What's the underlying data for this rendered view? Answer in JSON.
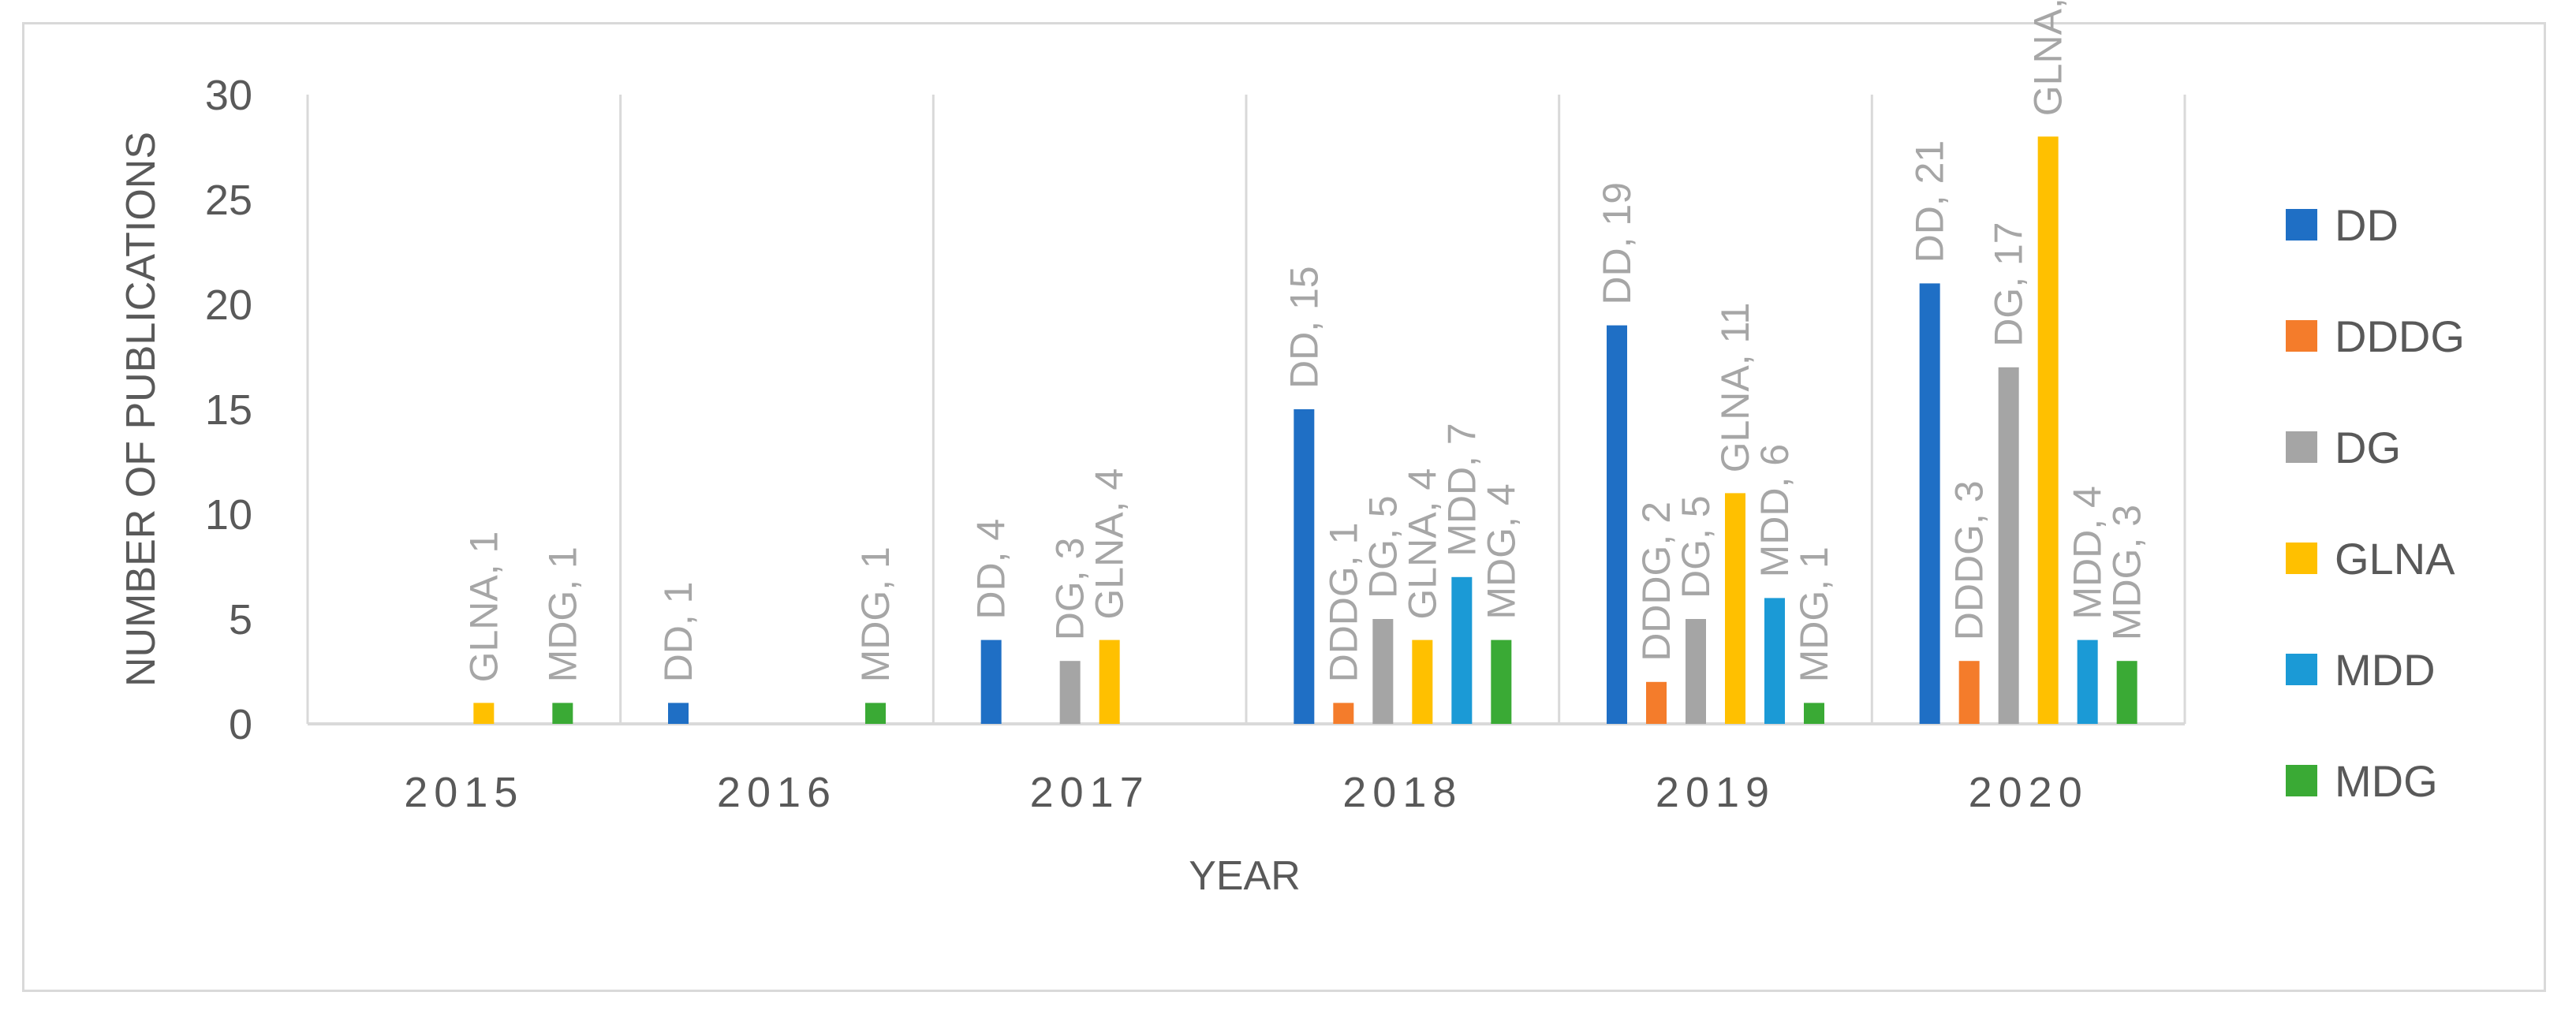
{
  "chart_data": {
    "type": "bar",
    "title": "",
    "xlabel": "YEAR",
    "ylabel": "NUMBER OF PUBLICATIONS",
    "ylim": [
      0,
      30
    ],
    "yticks": [
      0,
      5,
      10,
      15,
      20,
      25,
      30
    ],
    "categories": [
      "2015",
      "2016",
      "2017",
      "2018",
      "2019",
      "2020"
    ],
    "legend_position": "right",
    "series": [
      {
        "name": "DD",
        "color": "#1f6fc5",
        "values": [
          0,
          1,
          4,
          15,
          19,
          21
        ]
      },
      {
        "name": "DDDG",
        "color": "#f47c2b",
        "values": [
          0,
          0,
          0,
          1,
          2,
          3
        ]
      },
      {
        "name": "DG",
        "color": "#a5a5a5",
        "values": [
          0,
          0,
          3,
          5,
          5,
          17
        ]
      },
      {
        "name": "GLNA",
        "color": "#ffc000",
        "values": [
          1,
          0,
          4,
          4,
          11,
          28
        ]
      },
      {
        "name": "MDD",
        "color": "#1b9ad6",
        "values": [
          0,
          0,
          0,
          7,
          6,
          4
        ]
      },
      {
        "name": "MDG",
        "color": "#3aaa35",
        "values": [
          1,
          1,
          0,
          4,
          1,
          3
        ]
      }
    ]
  }
}
